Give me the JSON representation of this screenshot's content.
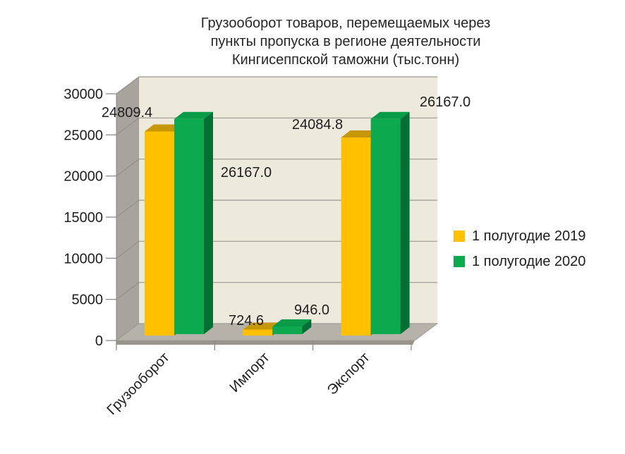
{
  "title": {
    "lines": [
      "Грузооборот товаров, перемещаемых через",
      "пункты пропуска в регионе деятельности",
      "Кингисеппской таможни (тыс.тонн)"
    ]
  },
  "chart_data": {
    "type": "bar",
    "projection": "3d",
    "title": "Грузооборот товаров, перемещаемых через пункты пропуска в регионе деятельности Кингисеппской таможни (тыс.тонн)",
    "categories": [
      "Грузооборот",
      "Импорт",
      "Экспорт"
    ],
    "series": [
      {
        "name": "1 полугодие 2019",
        "color": "#FFC000",
        "color_top": "#C6970B",
        "color_side": "#93700A",
        "values": [
          24809.4,
          724.6,
          24084.8
        ]
      },
      {
        "name": "1 полугодие 2020",
        "color": "#0CA94F",
        "color_top": "#099B47",
        "color_side": "#046F34",
        "values": [
          26167.0,
          946.0,
          26167.0
        ]
      }
    ],
    "value_label_format": "one_decimal",
    "value_labels": [
      "24809.4",
      "26167.0",
      "724.6",
      "946.0",
      "24084.8",
      "26167.0"
    ],
    "yticks": [
      0,
      5000,
      10000,
      15000,
      20000,
      25000,
      30000
    ],
    "ylim": [
      0,
      30000
    ],
    "xlabel": "",
    "ylabel": "",
    "grid": true,
    "legend_position": "right",
    "wall_color": "#EDEADD",
    "side_wall_color": "#A7A39D",
    "floor_color": "#B6B2AA"
  },
  "legend": {
    "items": [
      {
        "label": "1 полугодие 2019",
        "color": "#FFC000"
      },
      {
        "label": "1 полугодие 2020",
        "color": "#0CA94F"
      }
    ]
  }
}
